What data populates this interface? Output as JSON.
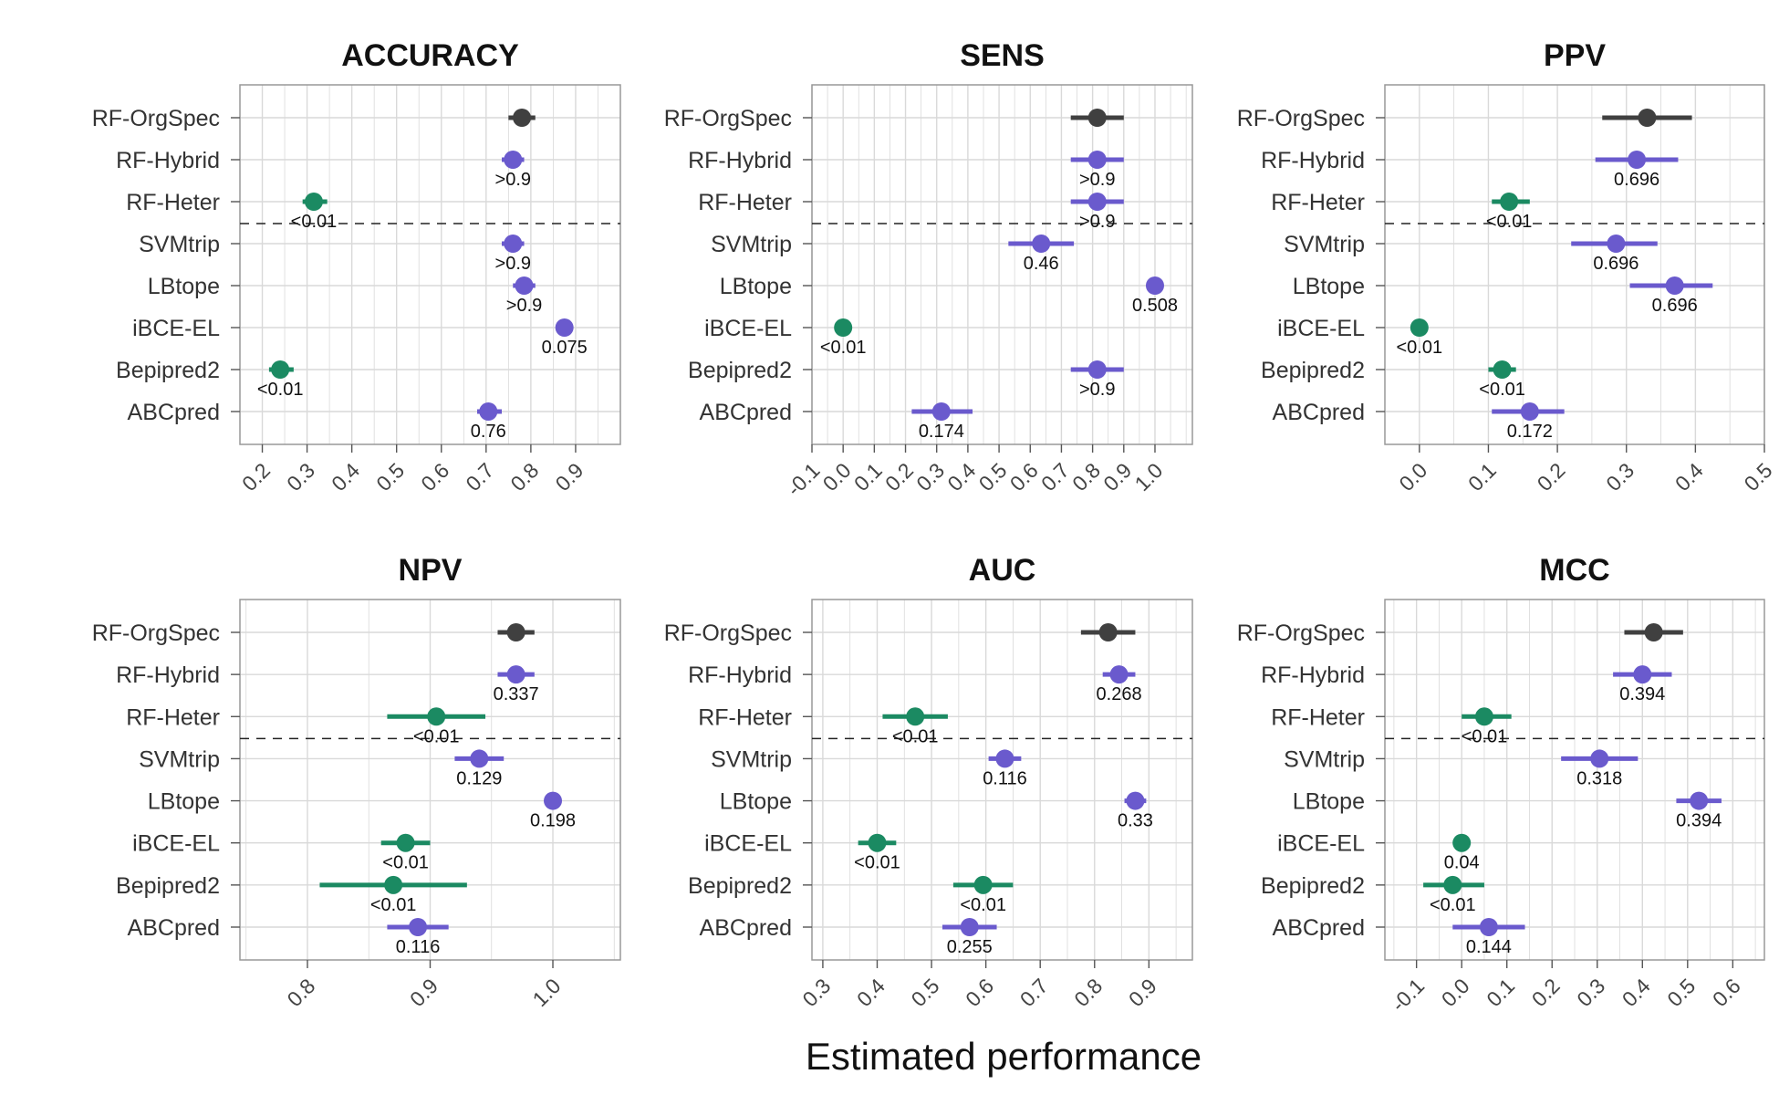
{
  "colors": {
    "reference": "#404040",
    "not_significant": "#6a5acd",
    "significant": "#1b8a62",
    "grid": "#d9d9d9",
    "frame": "#999999"
  },
  "x_axis_title": "Estimated performance",
  "chart_data": [
    {
      "type": "forest",
      "title": "ACCURACY",
      "xlim": [
        0.15,
        1.0
      ],
      "ticks": [
        0.2,
        0.3,
        0.4,
        0.5,
        0.6,
        0.7,
        0.8,
        0.9
      ],
      "tick_labels": [
        "0.2",
        "0.3",
        "0.4",
        "0.5",
        "0.6",
        "0.7",
        "0.8",
        "0.9"
      ],
      "rows": [
        {
          "label": "RF-OrgSpec",
          "est": 0.78,
          "lo": 0.75,
          "hi": 0.81,
          "p": "",
          "group": "reference"
        },
        {
          "label": "RF-Hybrid",
          "est": 0.76,
          "lo": 0.735,
          "hi": 0.785,
          "p": ">0.9",
          "group": "not_significant"
        },
        {
          "label": "RF-Heter",
          "est": 0.315,
          "lo": 0.29,
          "hi": 0.345,
          "p": "<0.01",
          "group": "significant"
        },
        {
          "label": "SVMtrip",
          "est": 0.76,
          "lo": 0.735,
          "hi": 0.785,
          "p": ">0.9",
          "group": "not_significant"
        },
        {
          "label": "LBtope",
          "est": 0.785,
          "lo": 0.76,
          "hi": 0.81,
          "p": ">0.9",
          "group": "not_significant"
        },
        {
          "label": "iBCE-EL",
          "est": 0.875,
          "lo": 0.875,
          "hi": 0.875,
          "p": "0.075",
          "group": "not_significant"
        },
        {
          "label": "Bepipred2",
          "est": 0.24,
          "lo": 0.215,
          "hi": 0.27,
          "p": "<0.01",
          "group": "significant"
        },
        {
          "label": "ABCpred",
          "est": 0.705,
          "lo": 0.68,
          "hi": 0.735,
          "p": "0.76",
          "group": "not_significant"
        }
      ]
    },
    {
      "type": "forest",
      "title": "SENS",
      "xlim": [
        -0.1,
        1.12
      ],
      "ticks": [
        -0.1,
        0.0,
        0.1,
        0.2,
        0.3,
        0.4,
        0.5,
        0.6,
        0.7,
        0.8,
        0.9,
        1.0
      ],
      "tick_labels": [
        "-0.1",
        "0.0",
        "0.1",
        "0.2",
        "0.3",
        "0.4",
        "0.5",
        "0.6",
        "0.7",
        "0.8",
        "0.9",
        "1.0"
      ],
      "rows": [
        {
          "label": "RF-OrgSpec",
          "est": 0.815,
          "lo": 0.73,
          "hi": 0.9,
          "p": "",
          "group": "reference"
        },
        {
          "label": "RF-Hybrid",
          "est": 0.815,
          "lo": 0.73,
          "hi": 0.9,
          "p": ">0.9",
          "group": "not_significant"
        },
        {
          "label": "RF-Heter",
          "est": 0.815,
          "lo": 0.73,
          "hi": 0.9,
          "p": ">0.9",
          "group": "not_significant"
        },
        {
          "label": "SVMtrip",
          "est": 0.635,
          "lo": 0.53,
          "hi": 0.74,
          "p": "0.46",
          "group": "not_significant"
        },
        {
          "label": "LBtope",
          "est": 1.0,
          "lo": 1.0,
          "hi": 1.0,
          "p": "0.508",
          "group": "not_significant"
        },
        {
          "label": "iBCE-EL",
          "est": 0.0,
          "lo": 0.0,
          "hi": 0.0,
          "p": "<0.01",
          "group": "significant"
        },
        {
          "label": "Bepipred2",
          "est": 0.815,
          "lo": 0.73,
          "hi": 0.9,
          "p": ">0.9",
          "group": "not_significant"
        },
        {
          "label": "ABCpred",
          "est": 0.315,
          "lo": 0.22,
          "hi": 0.415,
          "p": "0.174",
          "group": "not_significant"
        }
      ]
    },
    {
      "type": "forest",
      "title": "PPV",
      "xlim": [
        -0.05,
        0.5
      ],
      "ticks": [
        0.0,
        0.1,
        0.2,
        0.3,
        0.4,
        0.5
      ],
      "tick_labels": [
        "0.0",
        "0.1",
        "0.2",
        "0.3",
        "0.4",
        "0.5"
      ],
      "rows": [
        {
          "label": "RF-OrgSpec",
          "est": 0.33,
          "lo": 0.265,
          "hi": 0.395,
          "p": "",
          "group": "reference"
        },
        {
          "label": "RF-Hybrid",
          "est": 0.315,
          "lo": 0.255,
          "hi": 0.375,
          "p": "0.696",
          "group": "not_significant"
        },
        {
          "label": "RF-Heter",
          "est": 0.13,
          "lo": 0.105,
          "hi": 0.16,
          "p": "<0.01",
          "group": "significant"
        },
        {
          "label": "SVMtrip",
          "est": 0.285,
          "lo": 0.22,
          "hi": 0.345,
          "p": "0.696",
          "group": "not_significant"
        },
        {
          "label": "LBtope",
          "est": 0.37,
          "lo": 0.305,
          "hi": 0.425,
          "p": "0.696",
          "group": "not_significant"
        },
        {
          "label": "iBCE-EL",
          "est": 0.0,
          "lo": 0.0,
          "hi": 0.0,
          "p": "<0.01",
          "group": "significant"
        },
        {
          "label": "Bepipred2",
          "est": 0.12,
          "lo": 0.1,
          "hi": 0.14,
          "p": "<0.01",
          "group": "significant"
        },
        {
          "label": "ABCpred",
          "est": 0.16,
          "lo": 0.105,
          "hi": 0.21,
          "p": "0.172",
          "group": "not_significant"
        }
      ]
    },
    {
      "type": "forest",
      "title": "NPV",
      "xlim": [
        0.745,
        1.055
      ],
      "ticks": [
        0.8,
        0.9,
        1.0
      ],
      "tick_labels": [
        "0.8",
        "0.9",
        "1.0"
      ],
      "rows": [
        {
          "label": "RF-OrgSpec",
          "est": 0.97,
          "lo": 0.955,
          "hi": 0.985,
          "p": "",
          "group": "reference"
        },
        {
          "label": "RF-Hybrid",
          "est": 0.97,
          "lo": 0.955,
          "hi": 0.985,
          "p": "0.337",
          "group": "not_significant"
        },
        {
          "label": "RF-Heter",
          "est": 0.905,
          "lo": 0.865,
          "hi": 0.945,
          "p": "<0.01",
          "group": "significant"
        },
        {
          "label": "SVMtrip",
          "est": 0.94,
          "lo": 0.92,
          "hi": 0.96,
          "p": "0.129",
          "group": "not_significant"
        },
        {
          "label": "LBtope",
          "est": 1.0,
          "lo": 1.0,
          "hi": 1.0,
          "p": "0.198",
          "group": "not_significant"
        },
        {
          "label": "iBCE-EL",
          "est": 0.88,
          "lo": 0.86,
          "hi": 0.9,
          "p": "<0.01",
          "group": "significant"
        },
        {
          "label": "Bepipred2",
          "est": 0.87,
          "lo": 0.81,
          "hi": 0.93,
          "p": "<0.01",
          "group": "significant"
        },
        {
          "label": "ABCpred",
          "est": 0.89,
          "lo": 0.865,
          "hi": 0.915,
          "p": "0.116",
          "group": "not_significant"
        }
      ]
    },
    {
      "type": "forest",
      "title": "AUC",
      "xlim": [
        0.28,
        0.98
      ],
      "ticks": [
        0.3,
        0.4,
        0.5,
        0.6,
        0.7,
        0.8,
        0.9
      ],
      "tick_labels": [
        "0.3",
        "0.4",
        "0.5",
        "0.6",
        "0.7",
        "0.8",
        "0.9"
      ],
      "rows": [
        {
          "label": "RF-OrgSpec",
          "est": 0.825,
          "lo": 0.775,
          "hi": 0.875,
          "p": "",
          "group": "reference"
        },
        {
          "label": "RF-Hybrid",
          "est": 0.845,
          "lo": 0.815,
          "hi": 0.875,
          "p": "0.268",
          "group": "not_significant"
        },
        {
          "label": "RF-Heter",
          "est": 0.47,
          "lo": 0.41,
          "hi": 0.53,
          "p": "<0.01",
          "group": "significant"
        },
        {
          "label": "SVMtrip",
          "est": 0.635,
          "lo": 0.605,
          "hi": 0.665,
          "p": "0.116",
          "group": "not_significant"
        },
        {
          "label": "LBtope",
          "est": 0.875,
          "lo": 0.855,
          "hi": 0.895,
          "p": "0.33",
          "group": "not_significant"
        },
        {
          "label": "iBCE-EL",
          "est": 0.4,
          "lo": 0.365,
          "hi": 0.435,
          "p": "<0.01",
          "group": "significant"
        },
        {
          "label": "Bepipred2",
          "est": 0.595,
          "lo": 0.54,
          "hi": 0.65,
          "p": "<0.01",
          "group": "significant"
        },
        {
          "label": "ABCpred",
          "est": 0.57,
          "lo": 0.52,
          "hi": 0.62,
          "p": "0.255",
          "group": "not_significant"
        }
      ]
    },
    {
      "type": "forest",
      "title": "MCC",
      "xlim": [
        -0.17,
        0.67
      ],
      "ticks": [
        -0.1,
        0.0,
        0.1,
        0.2,
        0.3,
        0.4,
        0.5,
        0.6
      ],
      "tick_labels": [
        "-0.1",
        "0.0",
        "0.1",
        "0.2",
        "0.3",
        "0.4",
        "0.5",
        "0.6"
      ],
      "rows": [
        {
          "label": "RF-OrgSpec",
          "est": 0.425,
          "lo": 0.36,
          "hi": 0.49,
          "p": "",
          "group": "reference"
        },
        {
          "label": "RF-Hybrid",
          "est": 0.4,
          "lo": 0.335,
          "hi": 0.465,
          "p": "0.394",
          "group": "not_significant"
        },
        {
          "label": "RF-Heter",
          "est": 0.05,
          "lo": 0.0,
          "hi": 0.11,
          "p": "<0.01",
          "group": "significant"
        },
        {
          "label": "SVMtrip",
          "est": 0.305,
          "lo": 0.22,
          "hi": 0.39,
          "p": "0.318",
          "group": "not_significant"
        },
        {
          "label": "LBtope",
          "est": 0.525,
          "lo": 0.475,
          "hi": 0.575,
          "p": "0.394",
          "group": "not_significant"
        },
        {
          "label": "iBCE-EL",
          "est": 0.0,
          "lo": 0.0,
          "hi": 0.0,
          "p": "0.04",
          "group": "significant"
        },
        {
          "label": "Bepipred2",
          "est": -0.02,
          "lo": -0.085,
          "hi": 0.05,
          "p": "<0.01",
          "group": "significant"
        },
        {
          "label": "ABCpred",
          "est": 0.06,
          "lo": -0.02,
          "hi": 0.14,
          "p": "0.144",
          "group": "not_significant"
        }
      ]
    }
  ]
}
